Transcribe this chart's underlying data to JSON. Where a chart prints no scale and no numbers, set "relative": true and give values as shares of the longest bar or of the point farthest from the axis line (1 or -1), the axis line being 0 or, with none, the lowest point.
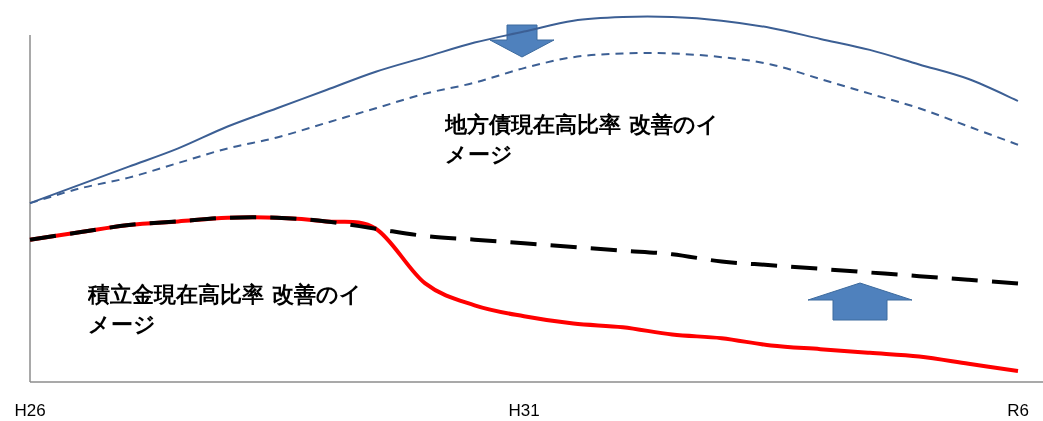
{
  "chart_data": {
    "type": "line",
    "relative": true,
    "categories": [
      "H26",
      null,
      null,
      null,
      null,
      null,
      null,
      null,
      null,
      null,
      "H31",
      null,
      null,
      null,
      null,
      null,
      null,
      null,
      null,
      null,
      "R6"
    ],
    "series": [
      {
        "color": "#3c5f94",
        "line_style": "solid",
        "values": [
          0.49,
          0.54,
          0.59,
          0.64,
          0.7,
          0.75,
          0.8,
          0.85,
          0.89,
          0.93,
          0.96,
          0.99,
          1.0,
          1.0,
          0.99,
          0.97,
          0.94,
          0.91,
          0.87,
          0.83,
          0.77
        ]
      },
      {
        "color": "#3c5f94",
        "line_style": "dashed",
        "values": [
          0.49,
          0.53,
          0.56,
          0.6,
          0.64,
          0.67,
          0.71,
          0.75,
          0.79,
          0.82,
          0.86,
          0.89,
          0.9,
          0.9,
          0.89,
          0.87,
          0.83,
          0.79,
          0.75,
          0.7,
          0.65
        ]
      },
      {
        "color": "#ff0000",
        "line_style": "solid",
        "values": [
          0.39,
          0.41,
          0.43,
          0.44,
          0.45,
          0.45,
          0.44,
          0.42,
          0.27,
          0.21,
          0.18,
          0.16,
          0.15,
          0.13,
          0.12,
          0.1,
          0.09,
          0.08,
          0.07,
          0.05,
          0.03
        ]
      },
      {
        "color": "#000000",
        "line_style": "dashed",
        "values": [
          0.39,
          0.41,
          0.43,
          0.44,
          0.45,
          0.45,
          0.44,
          0.42,
          0.4,
          0.39,
          0.38,
          0.37,
          0.36,
          0.35,
          0.33,
          0.32,
          0.31,
          0.3,
          0.29,
          0.28,
          0.27
        ]
      }
    ],
    "annotations": [
      "地方債現在高比率 改善のイメージ",
      "積立金現在高比率 改善のイメージ"
    ]
  }
}
